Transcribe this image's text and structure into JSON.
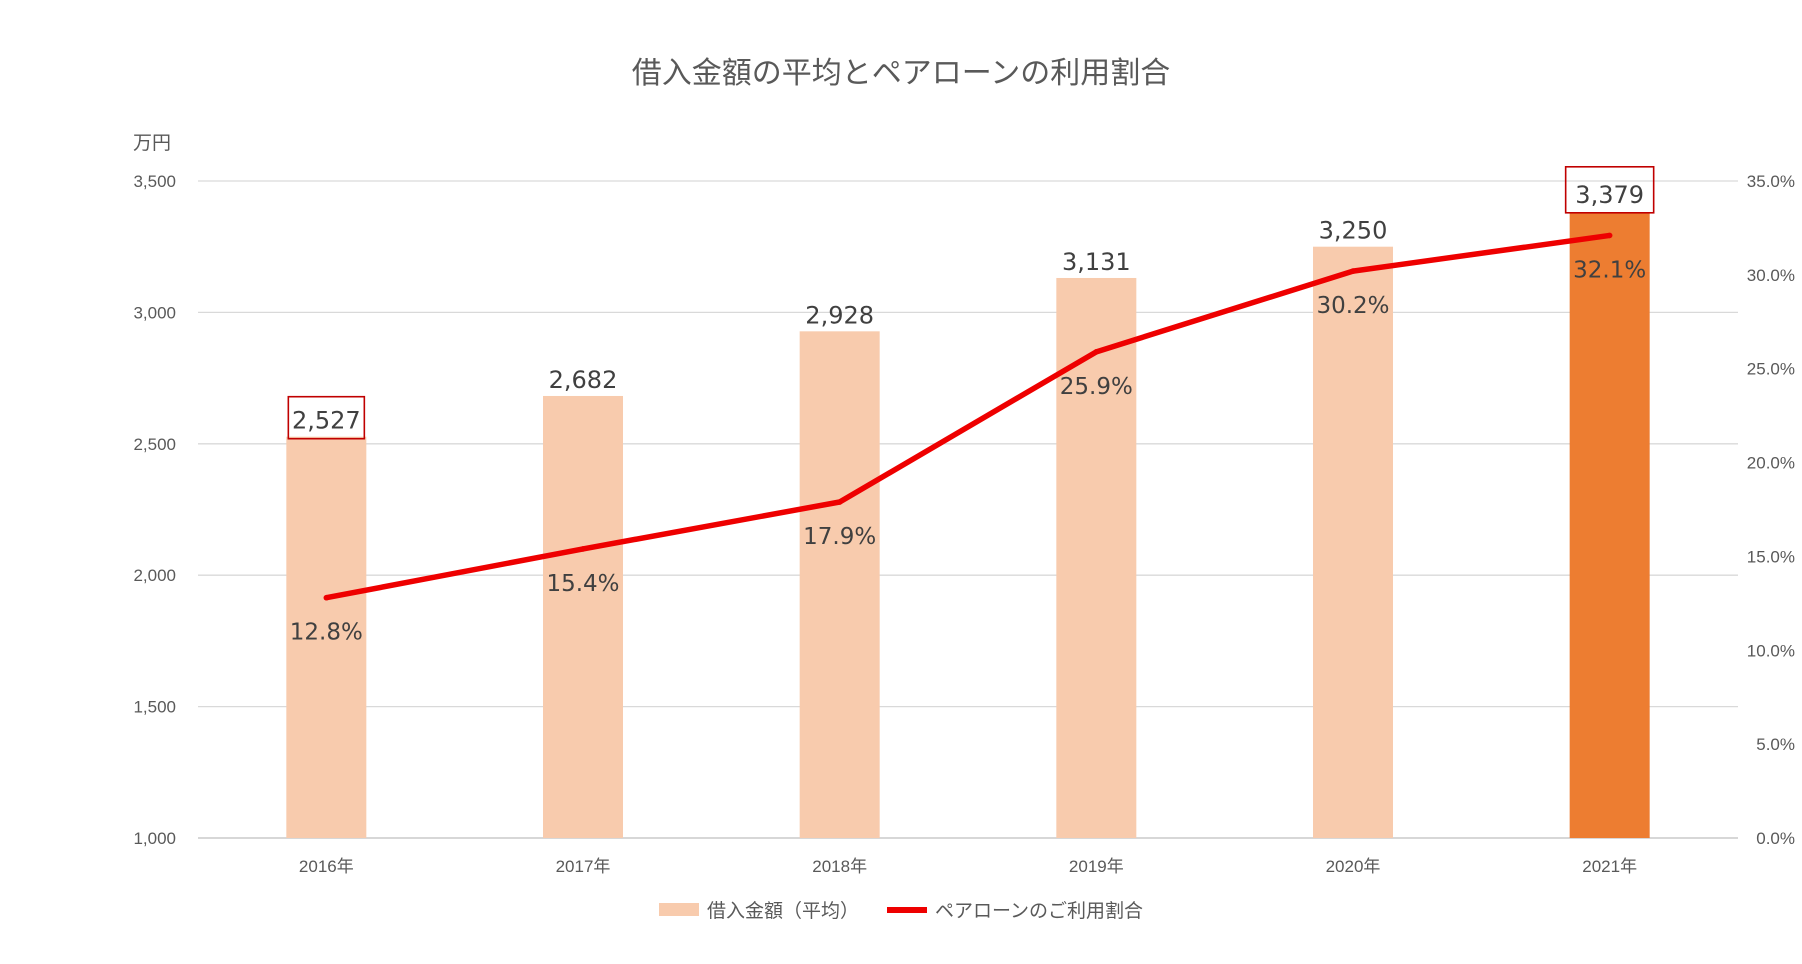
{
  "chart_data": {
    "type": "bar+line",
    "title": "借入金額の平均とペアローンの利用割合",
    "categories": [
      "2016年",
      "2017年",
      "2018年",
      "2019年",
      "2020年",
      "2021年"
    ],
    "series": [
      {
        "name": "借入金額（平均）",
        "type": "bar",
        "axis": "left",
        "values": [
          2527,
          2682,
          2928,
          3131,
          3250,
          3379
        ],
        "labels": [
          "2,527",
          "2,682",
          "2,928",
          "3,131",
          "3,250",
          "3,379"
        ],
        "color": "#F8CBAD",
        "highlight_color": "#ED7D31",
        "highlight_index": 5,
        "boxed_label_indices": [
          0,
          5
        ]
      },
      {
        "name": "ペアローンのご利用割合",
        "type": "line",
        "axis": "right",
        "values": [
          12.8,
          15.4,
          17.9,
          25.9,
          30.2,
          32.1
        ],
        "labels": [
          "12.8%",
          "15.4%",
          "17.9%",
          "25.9%",
          "30.2%",
          "32.1%"
        ],
        "color": "#EE0000"
      }
    ],
    "y_left": {
      "unit": "万円",
      "range": [
        1000,
        3500
      ],
      "ticks": [
        1000,
        1500,
        2000,
        2500,
        3000,
        3500
      ],
      "tick_labels": [
        "1,000",
        "1,500",
        "2,000",
        "2,500",
        "3,000",
        "3,500"
      ]
    },
    "y_right": {
      "range": [
        0,
        35
      ],
      "ticks": [
        0,
        5,
        10,
        15,
        20,
        25,
        30,
        35
      ],
      "tick_labels": [
        "0.0%",
        "5.0%",
        "10.0%",
        "15.0%",
        "20.0%",
        "25.0%",
        "30.0%",
        "35.0%"
      ]
    },
    "grid": true,
    "legend_position": "bottom",
    "gridline_color": "#D9D9D9",
    "box_color": "#C00000"
  }
}
